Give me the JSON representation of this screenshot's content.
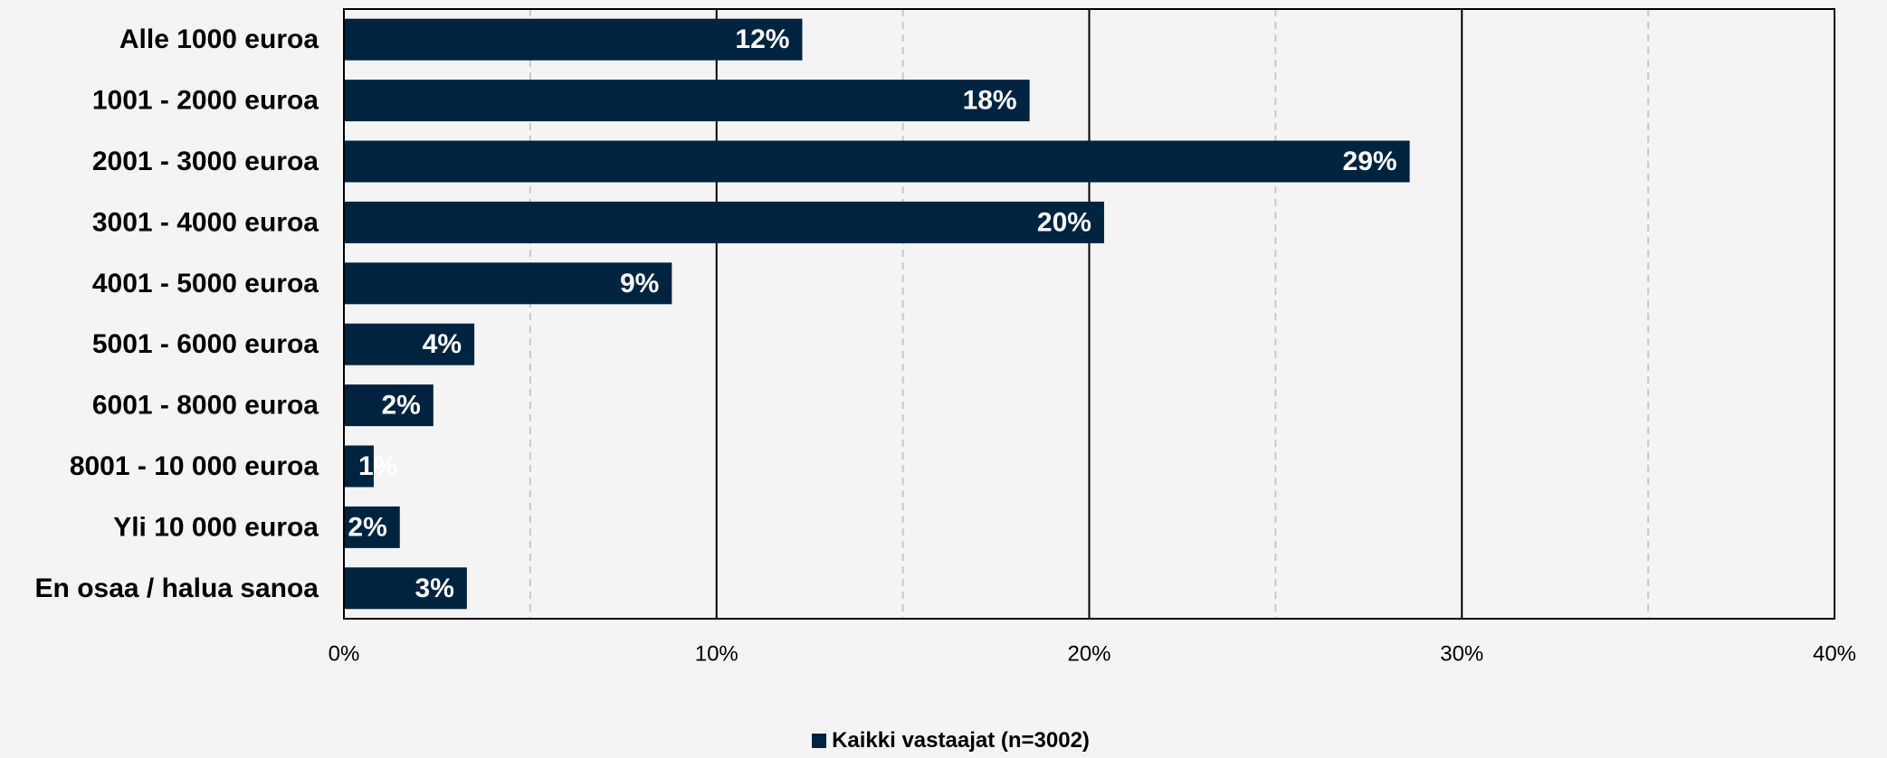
{
  "chart_data": {
    "type": "bar",
    "orientation": "horizontal",
    "title": "",
    "xlabel": "",
    "ylabel": "",
    "categories": [
      "Alle 1000 euroa",
      "1001 -  2000 euroa",
      "2001 -  3000 euroa",
      "3001 -  4000 euroa",
      "4001 -  5000 euroa",
      "5001 -  6000 euroa",
      "6001 -  8000 euroa",
      "8001 - 10 000 euroa",
      "Yli 10 000 euroa",
      "En osaa / halua sanoa"
    ],
    "series": [
      {
        "name": "Kaikki vastaajat (n=3002)",
        "values": [
          12.3,
          18.4,
          28.6,
          20.4,
          8.8,
          3.5,
          2.4,
          0.8,
          1.5,
          3.3
        ],
        "labels": [
          "12%",
          "18%",
          "29%",
          "20%",
          "9%",
          "4%",
          "2%",
          "1%",
          "2%",
          "3%"
        ],
        "color": "#002440"
      }
    ],
    "xlim": [
      0,
      40
    ],
    "x_ticks": [
      "0%",
      "10%",
      "20%",
      "30%",
      "40%"
    ],
    "grid": {
      "major": "solid",
      "minor": "dashed"
    },
    "legend_position": "bottom"
  },
  "colors": {
    "bar": "#002440",
    "background": "#f4f4f4",
    "major_grid": "#000000",
    "minor_grid": "#c8c8c8"
  }
}
